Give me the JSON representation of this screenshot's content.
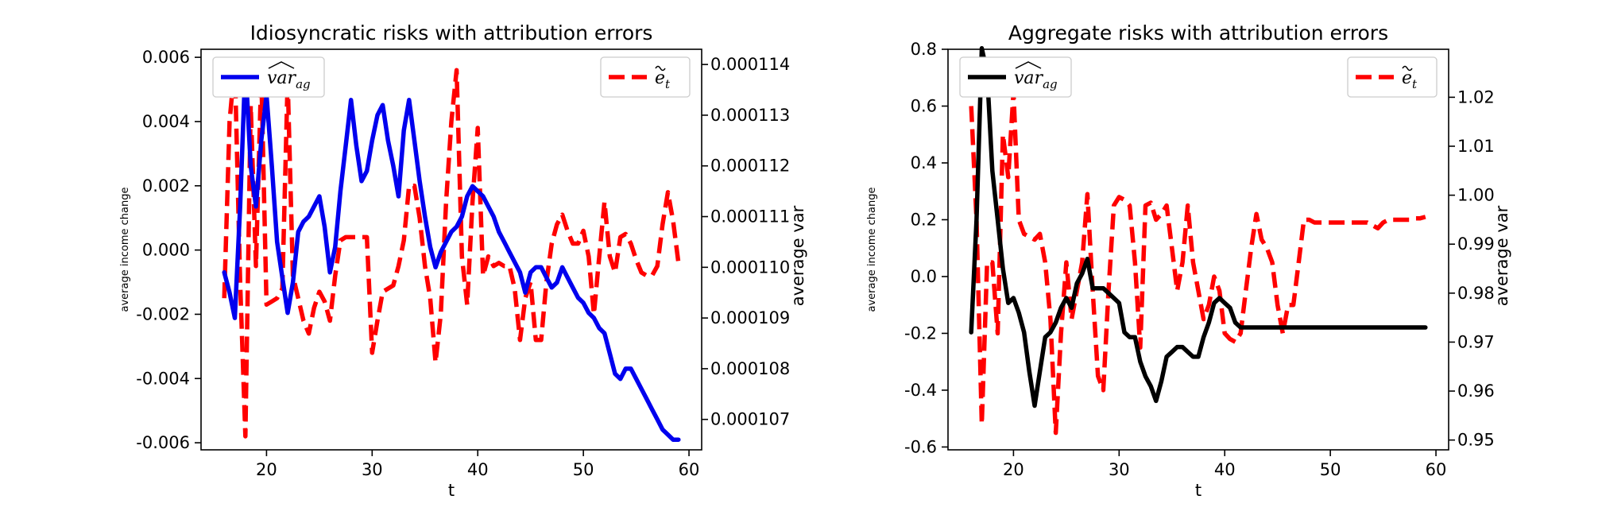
{
  "chart_data": [
    {
      "type": "line",
      "title": "Idiosyncratic risks with attribution errors",
      "xlabel": "t",
      "ylabel_left": "average income change",
      "ylabel_right": "average var",
      "xlim": [
        13.8,
        61.2
      ],
      "x_ticks": [
        20,
        30,
        40,
        50,
        60
      ],
      "ylim_left": [
        -0.00622,
        0.00625
      ],
      "y_ticks_left": [
        -0.006,
        -0.004,
        -0.002,
        0.0,
        0.002,
        0.004,
        0.006
      ],
      "y_tick_labels_left": [
        "-0.006",
        "-0.004",
        "-0.002",
        "0.000",
        "0.002",
        "0.004",
        "0.006"
      ],
      "ylim_right": [
        0.0001064,
        0.0001143
      ],
      "y_ticks_right": [
        0.000107,
        0.000108,
        0.000109,
        0.00011,
        0.000111,
        0.000112,
        0.000113,
        0.000114
      ],
      "y_tick_labels_right": [
        "0.000107",
        "0.000108",
        "0.000109",
        "0.000110",
        "0.000111",
        "0.000112",
        "0.000113",
        "0.000114"
      ],
      "grid": false,
      "series": [
        {
          "name": "e~_t",
          "axis": "left",
          "color": "#ff0000",
          "style": "dashed",
          "legend_loc": "upper right",
          "x": [
            16,
            16.5,
            17,
            17.5,
            18,
            18.5,
            19,
            19.5,
            20,
            20.5,
            21,
            21.5,
            22,
            22.5,
            23,
            23.5,
            24,
            24.5,
            25,
            25.5,
            26,
            26.5,
            27,
            27.5,
            28,
            28.5,
            29,
            29.5,
            30,
            30.5,
            31,
            31.5,
            32,
            32.5,
            33,
            33.5,
            34,
            34.5,
            35,
            35.5,
            36,
            36.5,
            37,
            37.5,
            38,
            38.5,
            39,
            39.5,
            40,
            40.5,
            41,
            41.5,
            42,
            42.5,
            43,
            43.5,
            44,
            44.5,
            45,
            45.5,
            46,
            46.5,
            47,
            47.5,
            48,
            48.5,
            49,
            49.5,
            50,
            50.5,
            51,
            51.5,
            52,
            52.5,
            53,
            53.5,
            54,
            54.5,
            55,
            55.5,
            56,
            56.5,
            57,
            57.5,
            58,
            58.5,
            59
          ],
          "values": [
            -0.0015,
            0.004,
            0.0058,
            -0.001,
            -0.0058,
            0.0045,
            -0.0005,
            0.0055,
            -0.0017,
            -0.0016,
            -0.0015,
            -0.0012,
            0.0053,
            -0.0008,
            -0.0015,
            -0.0022,
            -0.0026,
            -0.0018,
            -0.0013,
            -0.0016,
            -0.0022,
            -0.0008,
            0.0003,
            0.0004,
            0.0004,
            0.0004,
            0.0004,
            0.0004,
            -0.0032,
            -0.0022,
            -0.0013,
            -0.0012,
            -0.0011,
            -0.0005,
            0.0003,
            0.002,
            0.002,
            0.001,
            -0.0005,
            -0.0015,
            -0.0035,
            -0.002,
            0.0015,
            0.004,
            0.0056,
            -0.0002,
            -0.0017,
            0.0015,
            0.0038,
            -0.0008,
            -0.0002,
            -0.0005,
            -0.0004,
            -0.0005,
            -0.0005,
            -0.0012,
            -0.0028,
            -0.0015,
            -0.001,
            -0.0028,
            -0.0028,
            -0.001,
            0.0002,
            0.0008,
            0.0011,
            0.0006,
            0.0002,
            0.0002,
            0.0006,
            -0.0002,
            -0.002,
            -0.0002,
            0.0015,
            -0.0002,
            -0.0007,
            0.0004,
            0.0005,
            0.0002,
            -0.0003,
            -0.0007,
            -0.0008,
            -0.0008,
            -0.0005,
            0.0008,
            0.0018,
            0.0009,
            -0.0004
          ]
        },
        {
          "name": "var^_ag",
          "axis": "right",
          "color": "#0000ee",
          "style": "solid",
          "legend_loc": "upper left",
          "x": [
            16,
            16.5,
            17,
            17.5,
            18,
            18.5,
            19,
            19.5,
            20,
            20.5,
            21,
            21.5,
            22,
            22.5,
            23,
            23.5,
            24,
            24.5,
            25,
            25.5,
            26,
            26.5,
            27,
            27.5,
            28,
            28.5,
            29,
            29.5,
            30,
            30.5,
            31,
            31.5,
            32,
            32.5,
            33,
            33.5,
            34,
            34.5,
            35,
            35.5,
            36,
            36.5,
            37,
            37.5,
            38,
            38.5,
            39,
            39.5,
            40,
            40.5,
            41,
            41.5,
            42,
            42.5,
            43,
            43.5,
            44,
            44.5,
            45,
            45.5,
            46,
            46.5,
            47,
            47.5,
            48,
            48.5,
            49,
            49.5,
            50,
            50.5,
            51,
            51.5,
            52,
            52.5,
            53,
            53.5,
            54,
            54.5,
            55,
            55.5,
            56,
            56.5,
            57,
            57.5,
            58,
            58.5,
            59
          ],
          "values": [
            0.0001099,
            0.0001095,
            0.000109,
            0.0001112,
            0.000114,
            0.000112,
            0.0001112,
            0.0001125,
            0.0001134,
            0.000112,
            0.0001105,
            0.0001098,
            0.0001091,
            0.0001097,
            0.0001107,
            0.0001109,
            0.000111,
            0.0001112,
            0.0001114,
            0.0001108,
            0.0001099,
            0.0001104,
            0.0001115,
            0.0001124,
            0.0001133,
            0.0001124,
            0.0001117,
            0.0001119,
            0.0001125,
            0.000113,
            0.0001132,
            0.0001125,
            0.000112,
            0.0001114,
            0.0001127,
            0.0001133,
            0.0001125,
            0.0001117,
            0.000111,
            0.0001104,
            0.00011,
            0.0001103,
            0.0001105,
            0.0001107,
            0.0001108,
            0.000111,
            0.0001114,
            0.0001116,
            0.0001115,
            0.0001114,
            0.0001112,
            0.000111,
            0.0001107,
            0.0001105,
            0.0001103,
            0.0001101,
            0.0001099,
            0.0001095,
            0.0001099,
            0.00011,
            0.00011,
            0.0001098,
            0.0001096,
            0.0001097,
            0.00011,
            0.0001098,
            0.0001096,
            0.0001094,
            0.0001093,
            0.0001091,
            0.000109,
            0.0001088,
            0.0001087,
            0.0001083,
            0.0001079,
            0.0001078,
            0.000108,
            0.000108,
            0.0001078,
            0.0001076,
            0.0001074,
            0.0001072,
            0.000107,
            0.0001068,
            0.0001067,
            0.0001066,
            0.0001066
          ]
        }
      ]
    },
    {
      "type": "line",
      "title": "Aggregate risks with attribution errors",
      "xlabel": "t",
      "ylabel_left": "average income change",
      "ylabel_right": "average var",
      "xlim": [
        13.8,
        61.2
      ],
      "x_ticks": [
        20,
        30,
        40,
        50,
        60
      ],
      "ylim_left": [
        -0.61,
        0.8
      ],
      "y_ticks_left": [
        -0.6,
        -0.4,
        -0.2,
        0.0,
        0.2,
        0.4,
        0.6,
        0.8
      ],
      "y_tick_labels_left": [
        "-0.6",
        "-0.4",
        "-0.2",
        "0.0",
        "0.2",
        "0.4",
        "0.6",
        "0.8"
      ],
      "ylim_right": [
        0.948,
        1.0298
      ],
      "y_ticks_right": [
        0.95,
        0.96,
        0.97,
        0.98,
        0.99,
        1.0,
        1.01,
        1.02
      ],
      "y_tick_labels_right": [
        "0.95",
        "0.96",
        "0.97",
        "0.98",
        "0.99",
        "1.00",
        "1.01",
        "1.02"
      ],
      "grid": false,
      "series": [
        {
          "name": "e~_t",
          "axis": "left",
          "color": "#ff0000",
          "style": "dashed",
          "legend_loc": "upper right",
          "x": [
            16,
            16.5,
            17,
            17.5,
            18,
            18.5,
            19,
            19.5,
            20,
            20.5,
            21,
            21.5,
            22,
            22.5,
            23,
            23.5,
            24,
            24.5,
            25,
            25.5,
            26,
            26.5,
            27,
            27.5,
            28,
            28.5,
            29,
            29.5,
            30,
            30.5,
            31,
            31.5,
            32,
            32.5,
            33,
            33.5,
            34,
            34.5,
            35,
            35.5,
            36,
            36.5,
            37,
            37.5,
            38,
            38.5,
            39,
            39.5,
            40,
            40.5,
            41,
            41.5,
            42,
            42.5,
            43,
            43.5,
            44,
            44.5,
            45,
            45.5,
            46,
            46.5,
            47,
            47.5,
            48,
            48.5,
            49,
            49.5,
            50,
            50.5,
            51,
            51.5,
            52,
            52.5,
            53,
            53.5,
            54,
            54.5,
            55,
            55.5,
            56,
            56.5,
            57,
            57.5,
            58,
            58.5,
            59
          ],
          "values": [
            0.6,
            0.2,
            -0.52,
            0.05,
            0.05,
            -0.2,
            0.5,
            0.35,
            0.65,
            0.2,
            0.15,
            0.14,
            0.13,
            0.15,
            0.05,
            -0.15,
            -0.55,
            -0.2,
            0.05,
            -0.15,
            -0.05,
            0.05,
            0.29,
            -0.05,
            -0.35,
            -0.4,
            -0.05,
            0.25,
            0.28,
            0.27,
            0.25,
            0.05,
            -0.25,
            0.25,
            0.26,
            0.2,
            0.22,
            0.25,
            0.1,
            -0.05,
            0.05,
            0.25,
            0.05,
            -0.05,
            -0.15,
            -0.1,
            0.0,
            -0.05,
            -0.2,
            -0.22,
            -0.23,
            -0.2,
            -0.05,
            0.1,
            0.22,
            0.13,
            0.1,
            0.05,
            -0.1,
            -0.2,
            -0.1,
            -0.1,
            0.05,
            0.2,
            0.2,
            0.19,
            0.19,
            0.19,
            0.19,
            0.19,
            0.19,
            0.19,
            0.19,
            0.19,
            0.19,
            0.19,
            0.18,
            0.17,
            0.19,
            0.2,
            0.2,
            0.2,
            0.2,
            0.2,
            0.205,
            0.205,
            0.21
          ]
        },
        {
          "name": "var^_ag",
          "axis": "right",
          "color": "#000000",
          "style": "solid",
          "legend_loc": "upper left",
          "x": [
            16,
            16.5,
            17,
            17.5,
            18,
            18.5,
            19,
            19.5,
            20,
            20.5,
            21,
            21.5,
            22,
            22.5,
            23,
            23.5,
            24,
            24.5,
            25,
            25.5,
            26,
            26.5,
            27,
            27.5,
            28,
            28.5,
            29,
            29.5,
            30,
            30.5,
            31,
            31.5,
            32,
            32.5,
            33,
            33.5,
            34,
            34.5,
            35,
            35.5,
            36,
            36.5,
            37,
            37.5,
            38,
            38.5,
            39,
            39.5,
            40,
            40.5,
            41,
            41.5,
            42,
            42.5,
            43,
            43.5,
            44,
            44.5,
            45,
            45.5,
            46,
            46.5,
            47,
            47.5,
            48,
            48.5,
            49,
            49.5,
            50,
            50.5,
            51,
            51.5,
            52,
            52.5,
            53,
            53.5,
            54,
            54.5,
            55,
            55.5,
            56,
            56.5,
            57,
            57.5,
            58,
            58.5,
            59
          ],
          "values": [
            0.972,
            0.995,
            1.03,
            1.025,
            1.005,
            0.995,
            0.985,
            0.978,
            0.979,
            0.976,
            0.972,
            0.964,
            0.957,
            0.964,
            0.971,
            0.972,
            0.974,
            0.977,
            0.979,
            0.977,
            0.982,
            0.984,
            0.987,
            0.981,
            0.981,
            0.981,
            0.98,
            0.979,
            0.978,
            0.972,
            0.971,
            0.971,
            0.966,
            0.963,
            0.961,
            0.958,
            0.962,
            0.967,
            0.968,
            0.969,
            0.969,
            0.968,
            0.967,
            0.967,
            0.971,
            0.974,
            0.978,
            0.979,
            0.978,
            0.977,
            0.974,
            0.973,
            0.973,
            0.973,
            0.973,
            0.973,
            0.973,
            0.973,
            0.973,
            0.973,
            0.973,
            0.973,
            0.973,
            0.973,
            0.973,
            0.973,
            0.973,
            0.973,
            0.973,
            0.973,
            0.973,
            0.973,
            0.973,
            0.973,
            0.973,
            0.973,
            0.973,
            0.973,
            0.973,
            0.973,
            0.973,
            0.973,
            0.973,
            0.973,
            0.973,
            0.973,
            0.973
          ]
        }
      ]
    }
  ]
}
